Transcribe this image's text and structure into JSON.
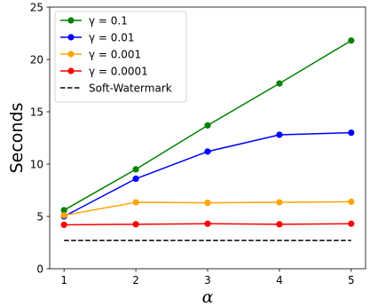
{
  "chart_data": {
    "type": "line",
    "xlabel": "α",
    "ylabel": "Seconds",
    "x": [
      1,
      2,
      3,
      4,
      5
    ],
    "xlim": [
      0.8,
      5.2
    ],
    "ylim": [
      0,
      25
    ],
    "xticks": [
      1,
      2,
      3,
      4,
      5
    ],
    "yticks": [
      0,
      5,
      10,
      15,
      20,
      25
    ],
    "grid": false,
    "legend_position": "top-left",
    "series": [
      {
        "name": "γ = 0.1",
        "color": "#008000",
        "marker": "circle",
        "line": "solid",
        "values": [
          5.6,
          9.5,
          13.7,
          17.7,
          21.8
        ]
      },
      {
        "name": "γ = 0.01",
        "color": "#0000ff",
        "marker": "circle",
        "line": "solid",
        "values": [
          5.0,
          8.6,
          11.2,
          12.8,
          13.0
        ]
      },
      {
        "name": "γ = 0.001",
        "color": "#ffa500",
        "marker": "circle",
        "line": "solid",
        "values": [
          5.1,
          6.35,
          6.3,
          6.35,
          6.4
        ]
      },
      {
        "name": "γ = 0.0001",
        "color": "#ff0000",
        "marker": "circle",
        "line": "solid",
        "values": [
          4.2,
          4.25,
          4.3,
          4.25,
          4.3
        ]
      },
      {
        "name": "Soft-Watermark",
        "color": "#000000",
        "marker": "none",
        "line": "dashed",
        "values": [
          2.7,
          2.7,
          2.7,
          2.7,
          2.7
        ]
      }
    ]
  }
}
